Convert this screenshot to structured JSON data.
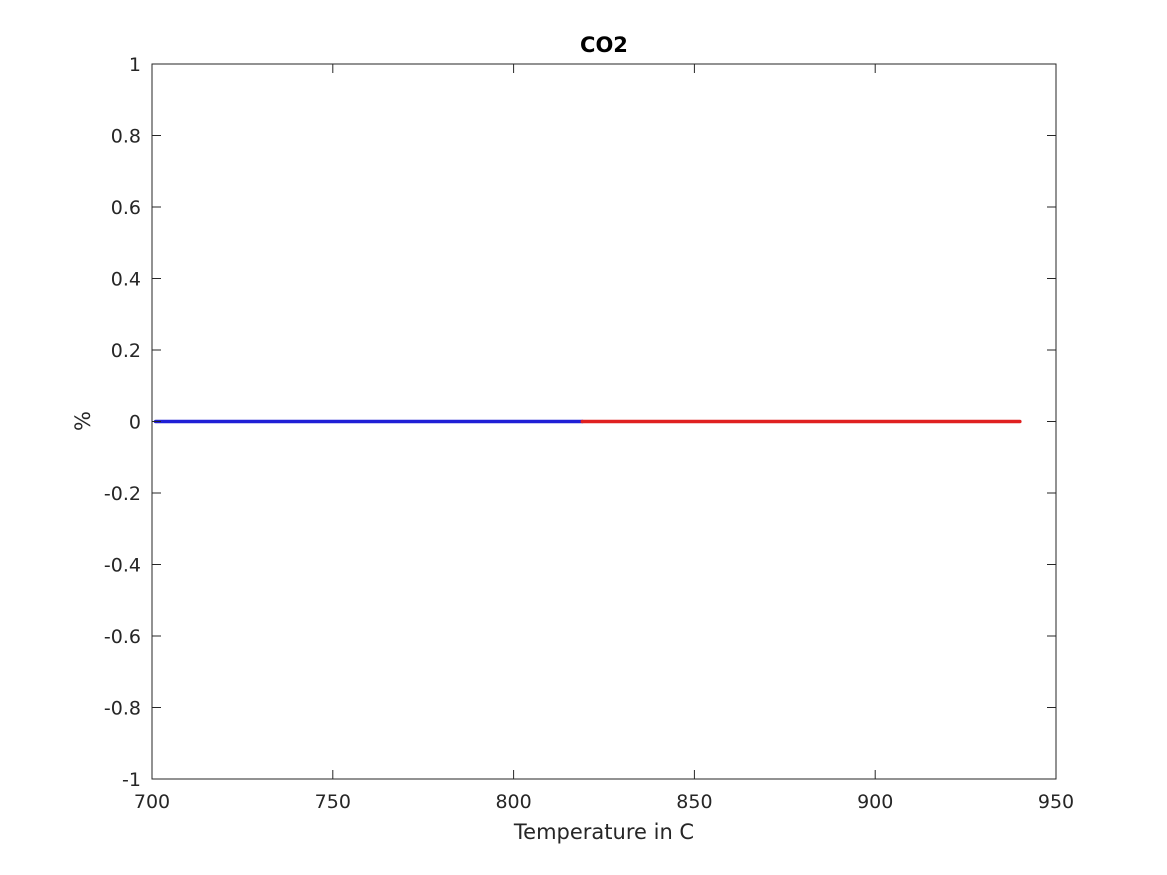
{
  "chart_data": {
    "type": "line",
    "title": "CO2",
    "xlabel": "Temperature in C",
    "ylabel": "%",
    "xlim": [
      700,
      950
    ],
    "ylim": [
      -1,
      1
    ],
    "x_ticks": [
      700,
      750,
      800,
      850,
      900,
      950
    ],
    "y_ticks": [
      -1,
      -0.8,
      -0.6,
      -0.4,
      -0.2,
      0,
      0.2,
      0.4,
      0.6,
      0.8,
      1
    ],
    "x_tick_labels": [
      "700",
      "750",
      "800",
      "850",
      "900",
      "950"
    ],
    "y_tick_labels": [
      "-1",
      "-0.8",
      "-0.6",
      "-0.4",
      "-0.2",
      "0",
      "0.2",
      "0.4",
      "0.6",
      "0.8",
      "1"
    ],
    "grid": false,
    "series": [
      {
        "color": "#1f1fd6",
        "x": [
          701,
          819
        ],
        "y": [
          0,
          0
        ]
      },
      {
        "color": "#e02020",
        "x": [
          819,
          940
        ],
        "y": [
          0,
          0
        ]
      }
    ]
  }
}
